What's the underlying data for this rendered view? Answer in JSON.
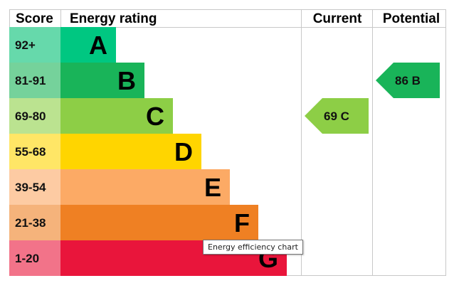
{
  "headers": {
    "score": "Score",
    "energy_rating": "Energy rating",
    "current": "Current",
    "potential": "Potential"
  },
  "chart_data": {
    "type": "bar",
    "categories": [
      "A",
      "B",
      "C",
      "D",
      "E",
      "F",
      "G"
    ],
    "score_ranges": [
      "92+",
      "81-91",
      "69-80",
      "55-68",
      "39-54",
      "21-38",
      "1-20"
    ],
    "band_colors": [
      "#00c781",
      "#19b459",
      "#8dce46",
      "#ffd500",
      "#fcaa65",
      "#ef8023",
      "#e9153b"
    ],
    "score_cell_colors": [
      "#66d9ab",
      "#75d29b",
      "#bbe390",
      "#ffe666",
      "#fdcba3",
      "#f5b37b",
      "#f27389"
    ],
    "current": {
      "value": 69,
      "band": "C",
      "label": "69 C",
      "color": "#8dce46"
    },
    "potential": {
      "value": 86,
      "band": "B",
      "label": "86 B",
      "color": "#19b459"
    }
  },
  "tooltip": {
    "text": "Energy efficiency chart"
  }
}
